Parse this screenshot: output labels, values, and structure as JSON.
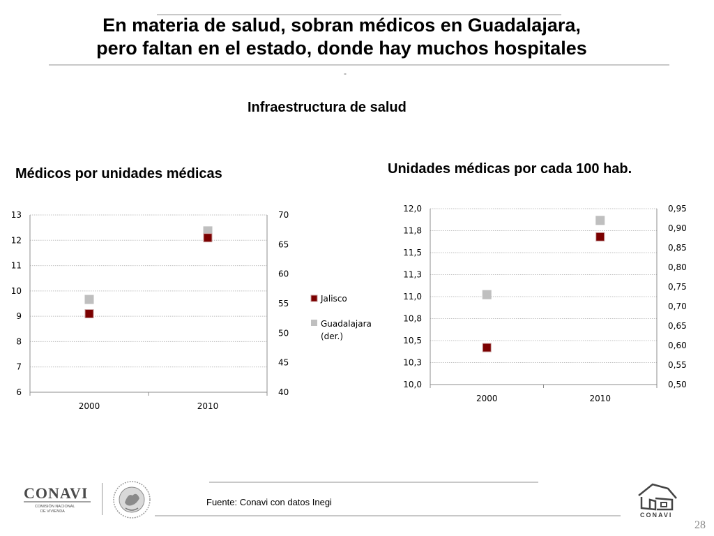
{
  "slide": {
    "title_line1": "En materia de salud, sobran médicos en Guadalajara,",
    "title_line2": "pero faltan en el estado, donde hay muchos hospitales",
    "dash": "-",
    "section_heading": "Infraestructura de salud",
    "source": "Fuente: Conavi con datos Inegi",
    "page_number": "28"
  },
  "logos": {
    "left_name": "CONAVI",
    "left_sub1": "COMISIÓN NACIONAL",
    "left_sub2": "DE VIVIENDA",
    "right_name": "CONAVI"
  },
  "colors": {
    "jalisco": "#7b0000",
    "guadalajara": "#bfbfbf",
    "grid": "#bfbfbf"
  },
  "chart_data": [
    {
      "type": "scatter",
      "title": "Médicos por unidades médicas",
      "categories": [
        "2000",
        "2010"
      ],
      "y_left": {
        "min": 6,
        "max": 13,
        "ticks": [
          "6",
          "7",
          "8",
          "9",
          "10",
          "11",
          "12",
          "13"
        ]
      },
      "y_right": {
        "min": 40,
        "max": 70,
        "ticks": [
          "40",
          "45",
          "50",
          "55",
          "60",
          "65",
          "70"
        ]
      },
      "series": [
        {
          "name": "Jalisco",
          "axis": "left",
          "values": [
            9.1,
            12.1
          ]
        },
        {
          "name": "Guadalajara (der.)",
          "axis": "right",
          "values": [
            55.7,
            67.3
          ]
        }
      ],
      "legend": {
        "position": "right",
        "entries": [
          "Jalisco",
          "Guadalajara",
          "(der.)"
        ]
      },
      "grid": true
    },
    {
      "type": "scatter",
      "title": "Unidades médicas por cada 100 hab.",
      "categories": [
        "2000",
        "2010"
      ],
      "y_left": {
        "min": 10.0,
        "max": 12.0,
        "ticks": [
          "10,0",
          "10,3",
          "10,5",
          "10,8",
          "11,0",
          "11,3",
          "11,5",
          "11,8",
          "12,0"
        ]
      },
      "y_right": {
        "min": 0.5,
        "max": 0.95,
        "ticks": [
          "0,50",
          "0,55",
          "0,60",
          "0,65",
          "0,70",
          "0,75",
          "0,80",
          "0,85",
          "0,90",
          "0,95"
        ]
      },
      "series": [
        {
          "name": "Jalisco",
          "axis": "left",
          "values": [
            10.42,
            11.68
          ]
        },
        {
          "name": "Guadalajara",
          "axis": "right",
          "values": [
            0.73,
            0.92
          ]
        }
      ],
      "grid": true
    }
  ]
}
